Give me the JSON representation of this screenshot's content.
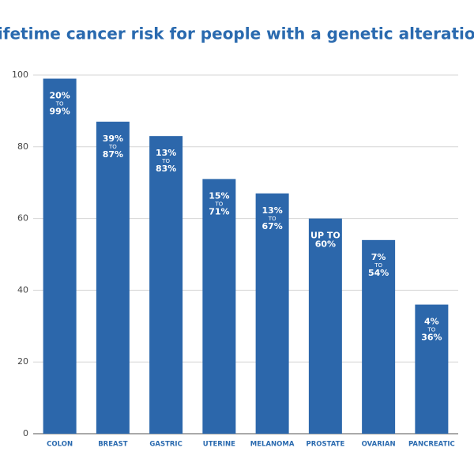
{
  "chart_data": {
    "type": "bar",
    "title": "Lifetime cancer risk for people with a genetic alteration",
    "categories": [
      "COLON",
      "BREAST",
      "GASTRIC",
      "UTERINE",
      "MELANOMA",
      "PROSTATE",
      "OVARIAN",
      "PANCREATIC"
    ],
    "values": [
      99,
      87,
      83,
      71,
      67,
      60,
      54,
      36
    ],
    "value_labels": [
      [
        "20%",
        "TO",
        "99%"
      ],
      [
        "39%",
        "TO",
        "87%"
      ],
      [
        "13%",
        "TO",
        "83%"
      ],
      [
        "15%",
        "TO",
        "71%"
      ],
      [
        "13%",
        "TO",
        "67%"
      ],
      [
        "UP TO",
        "60%"
      ],
      [
        "7%",
        "TO",
        "54%"
      ],
      [
        "4%",
        "TO",
        "36%"
      ]
    ],
    "color": "#2c67ab",
    "ylim": [
      0,
      100
    ],
    "yticks": [
      0,
      20,
      40,
      60,
      80,
      100
    ],
    "grid": true
  }
}
